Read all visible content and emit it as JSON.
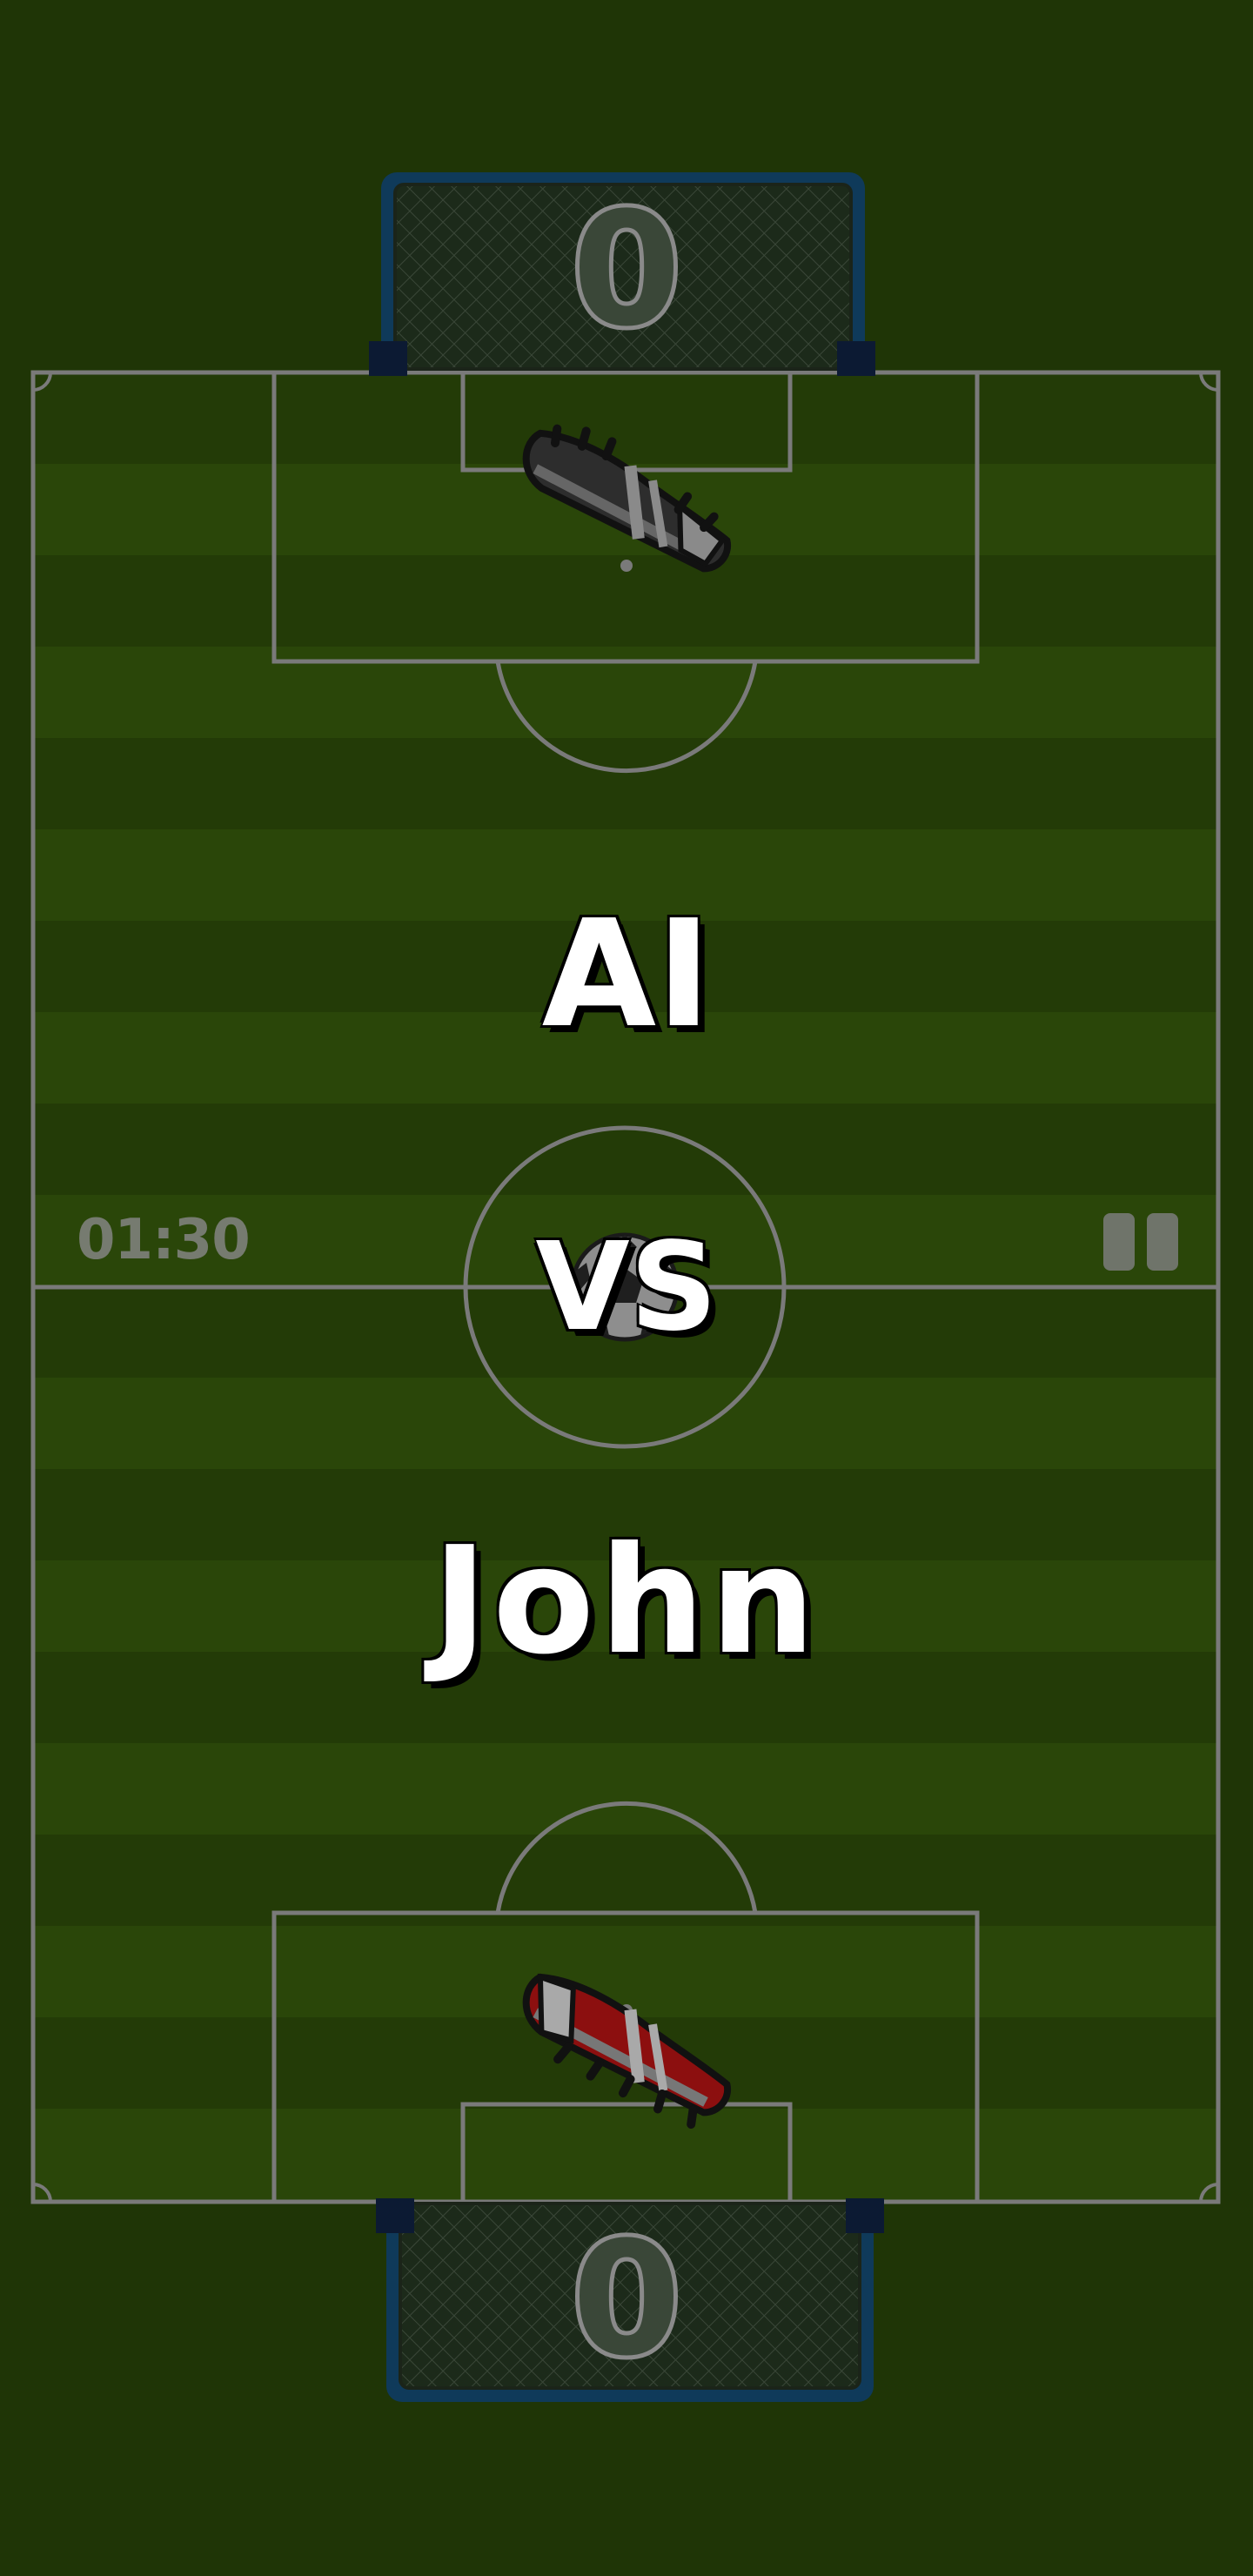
{
  "match": {
    "player_top": "AI",
    "player_bottom": "John",
    "versus_label": "VS",
    "timer": "01:30"
  },
  "scores": {
    "top": "0",
    "bottom": "0"
  },
  "pause_button": {
    "icon": "pause-icon"
  },
  "colors": {
    "background_overlay": "#1f3506",
    "pitch_stripe_dark": "#233b07",
    "pitch_stripe_light": "#2a4609",
    "pitch_lines": "#7a7a7a",
    "goal_frame": "#0f3a5a",
    "top_player_boot": "#2d2d2d",
    "bottom_player_boot": "#8c0f0f"
  },
  "icons": {
    "ball": "soccer-ball-icon",
    "top_mallet": "black-boot-icon",
    "bottom_mallet": "red-boot-icon"
  }
}
